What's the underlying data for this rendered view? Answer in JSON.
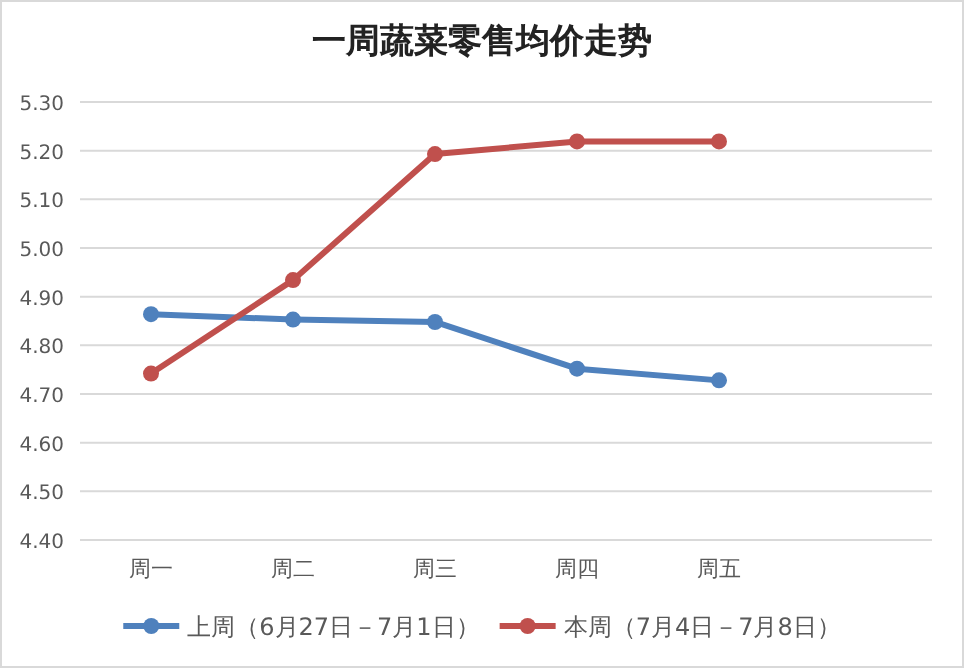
{
  "chart_data": {
    "type": "line",
    "title": "一周蔬菜零售均价走势",
    "categories": [
      "周一",
      "周二",
      "周三",
      "周四",
      "周五",
      null
    ],
    "series": [
      {
        "name": "上周（6月27日－7月1日）",
        "color": "#4f81bd",
        "values": [
          4.864,
          4.853,
          4.848,
          4.752,
          4.728,
          null
        ]
      },
      {
        "name": "本周（7月4日－7月8日）",
        "color": "#c0504d",
        "values": [
          4.742,
          4.934,
          5.193,
          5.219,
          5.219,
          null
        ]
      }
    ],
    "ylim": [
      4.4,
      5.3
    ],
    "yticks": [
      {
        "value": 4.4,
        "label": "4.40"
      },
      {
        "value": 4.5,
        "label": "4.50"
      },
      {
        "value": 4.6,
        "label": "4.60"
      },
      {
        "value": 4.7,
        "label": "4.70"
      },
      {
        "value": 4.8,
        "label": "4.80"
      },
      {
        "value": 4.9,
        "label": "4.90"
      },
      {
        "value": 5.0,
        "label": "5.00"
      },
      {
        "value": 5.1,
        "label": "5.10"
      },
      {
        "value": 5.2,
        "label": "5.20"
      },
      {
        "value": 5.3,
        "label": "5.30"
      }
    ],
    "grid": "y",
    "legend": "bottom",
    "marker": "circle",
    "line_style": "solid"
  }
}
